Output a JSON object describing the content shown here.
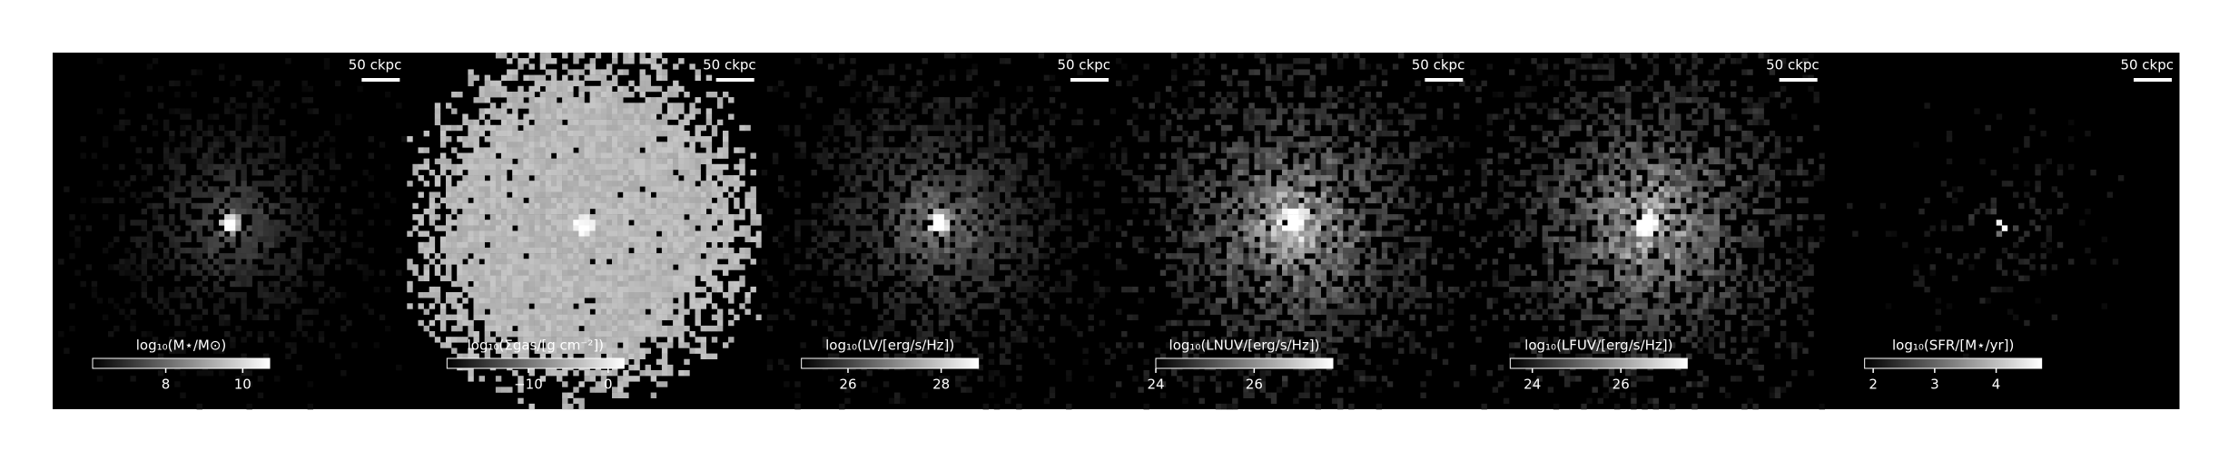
{
  "panels": [
    {
      "scale_bar": "50 ckpc",
      "colorbar": {
        "label": "log₁₀(M⋆/M⊙)",
        "clim": [
          6.1,
          10.7
        ],
        "ticks": [
          8,
          10
        ]
      }
    },
    {
      "scale_bar": "50 ckpc",
      "colorbar": {
        "label": "log₁₀(Σgas/[g cm⁻²])",
        "clim": [
          -20.2,
          2
        ],
        "ticks": [
          {
            "value": -10,
            "label": "−10"
          },
          0
        ]
      }
    },
    {
      "scale_bar": "50 ckpc",
      "colorbar": {
        "label": "log₁₀(LV/[erg/s/Hz])",
        "clim": [
          25,
          28.8
        ],
        "ticks": [
          26,
          28
        ]
      }
    },
    {
      "scale_bar": "50 ckpc",
      "colorbar": {
        "label": "log₁₀(LNUV/[erg/s/Hz])",
        "clim": [
          24,
          27.6
        ],
        "ticks": [
          24,
          26
        ]
      }
    },
    {
      "scale_bar": "50 ckpc",
      "colorbar": {
        "label": "log₁₀(LFUV/[erg/s/Hz])",
        "clim": [
          23.5,
          27.5
        ],
        "ticks": [
          24,
          26
        ]
      }
    },
    {
      "scale_bar": "50 ckpc",
      "colorbar": {
        "label": "log₁₀(SFR/[M⋆/yr])",
        "clim": [
          1.86,
          4.74
        ],
        "ticks": [
          2,
          3,
          4
        ]
      }
    }
  ]
}
